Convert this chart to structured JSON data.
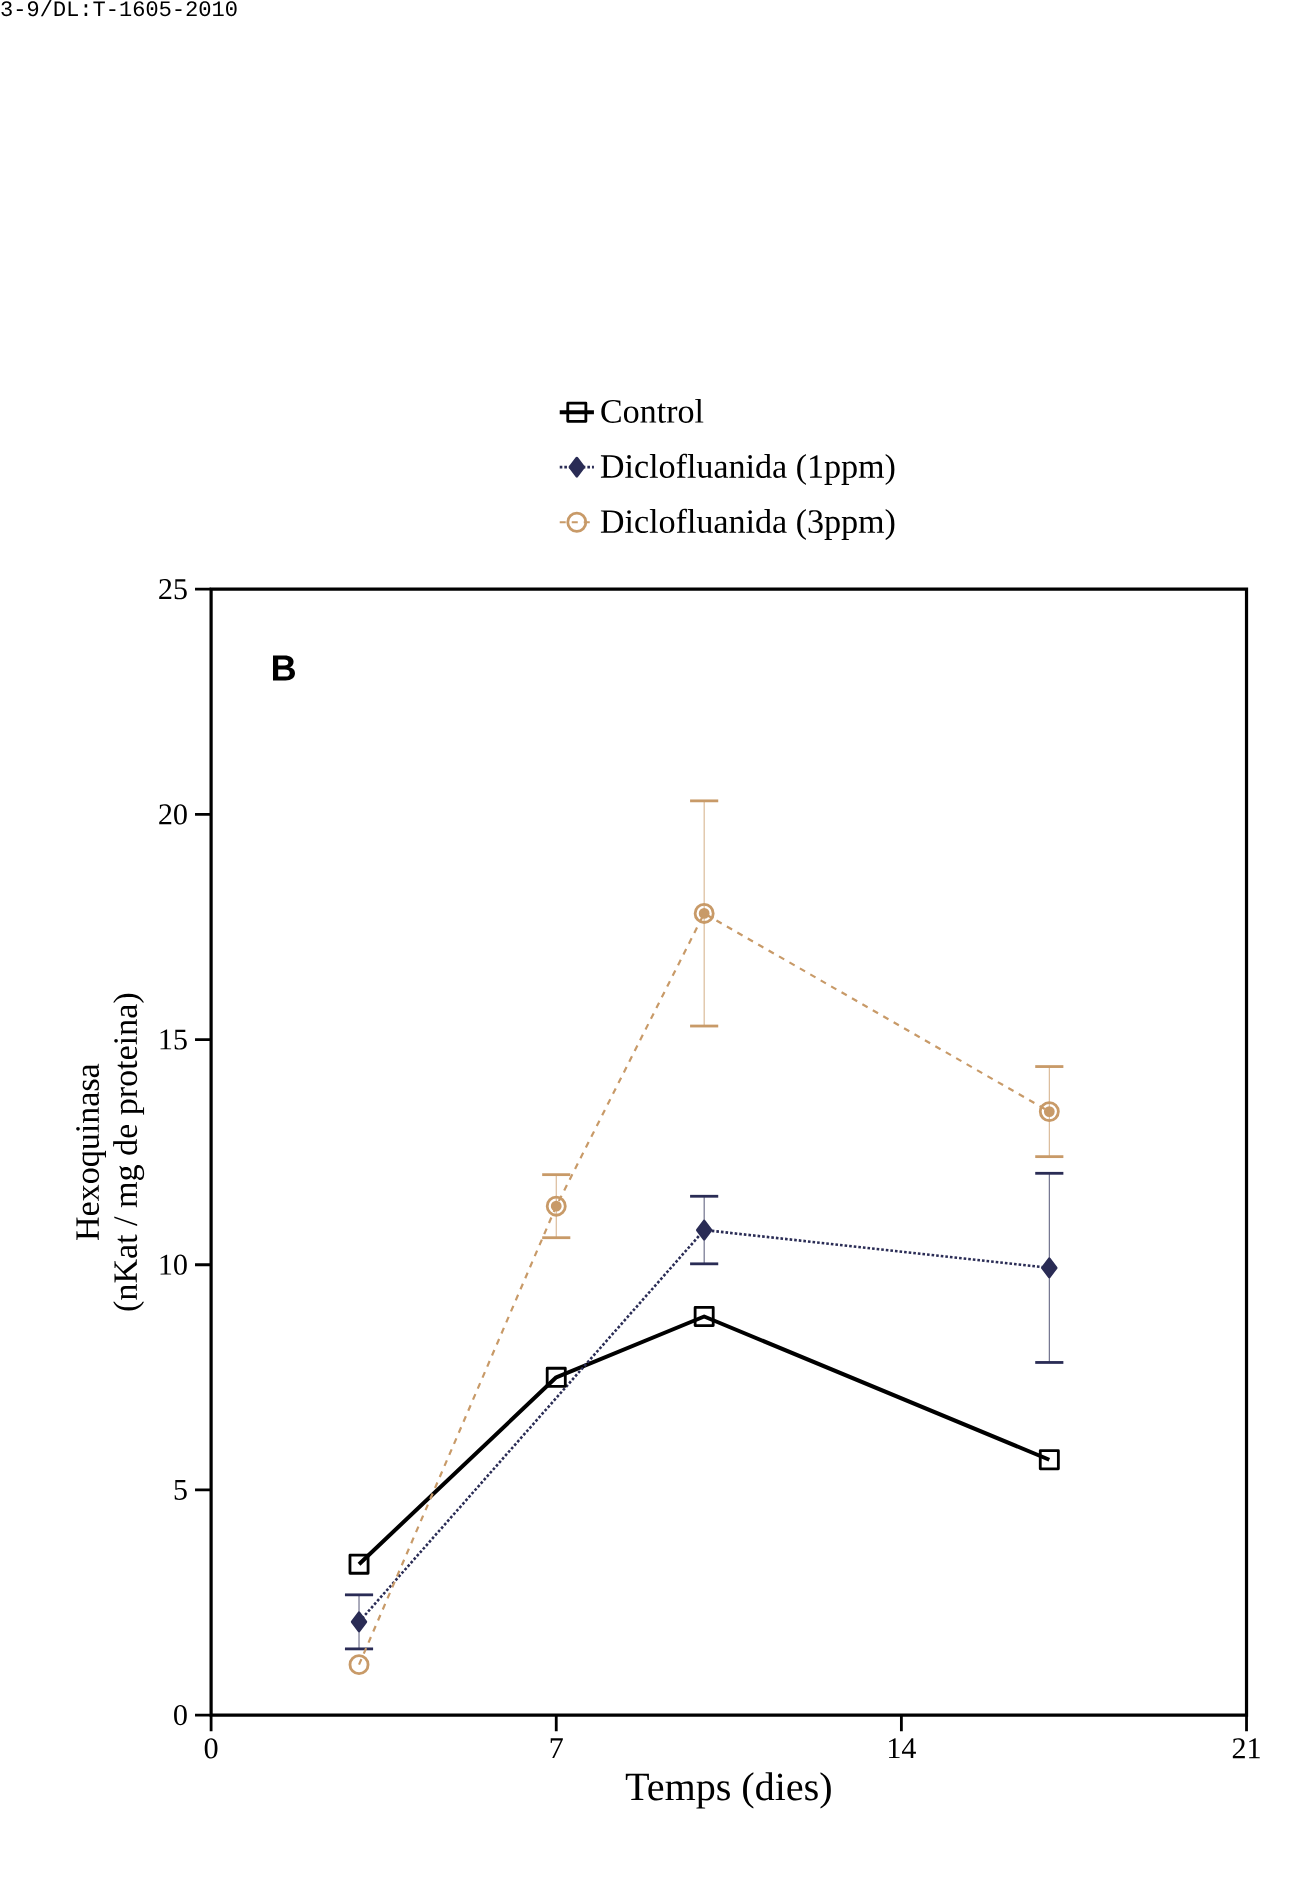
{
  "chart_data": {
    "type": "line",
    "xlabel": "Temps (dies)",
    "ylabel": "Hexoquinasa\n(nKat / mg de proteina)",
    "annotations": [
      "3-9/DL:T-1605-2010",
      "**B**"
    ],
    "x": [
      3,
      7,
      10,
      17
    ],
    "series": [
      {
        "name": "Control",
        "color": "#000000",
        "marker": "square",
        "line_style": "solid",
        "values": [
          3.35,
          7.5,
          8.85,
          5.67
        ]
      },
      {
        "name": "Diclofluanida (1ppm)",
        "color": "#2a2c55",
        "marker": "diamond",
        "line_style": "dotted",
        "values": [
          2.07,
          10.77,
          9.93
        ],
        "errors": [
          0.6,
          0.75,
          2.1
        ],
        "x": [
          3,
          10,
          17
        ]
      },
      {
        "name": "Diclofluanida (3ppm)",
        "color": "#c89a68",
        "marker": "circle",
        "line_style": "dashed",
        "values": [
          1.12,
          11.3,
          17.8,
          13.4
        ],
        "errors": [
          null,
          0.7,
          2.5,
          1.0
        ]
      }
    ],
    "xlim": [
      0,
      21
    ],
    "xticks": [
      0,
      7,
      14,
      21
    ],
    "ylim": [
      0,
      25
    ],
    "yticks": [
      0,
      5,
      10,
      15,
      20,
      25
    ],
    "legend": "right",
    "grid": false
  }
}
